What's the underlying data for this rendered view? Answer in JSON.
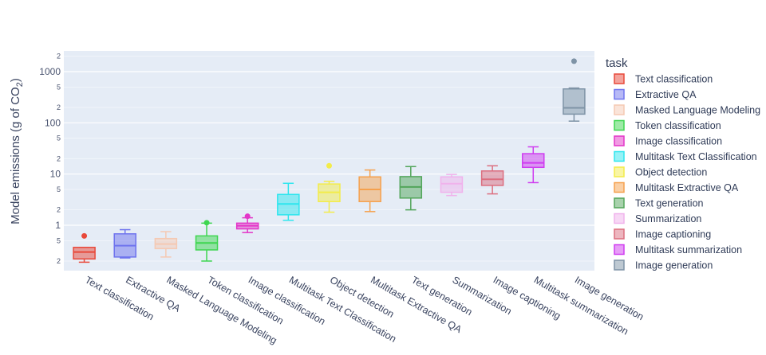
{
  "chart_data": {
    "type": "box",
    "title": "",
    "xlabel": "",
    "ylabel": "Model emissions (g of CO",
    "ylabel_sub": "2",
    "ylabel_close": ")",
    "yscale": "log",
    "ylim": [
      0.15,
      2500
    ],
    "y_major_ticks": [
      {
        "v": 1,
        "label": "1"
      },
      {
        "v": 10,
        "label": "10"
      },
      {
        "v": 100,
        "label": "100"
      },
      {
        "v": 1000,
        "label": "1000"
      }
    ],
    "y_minor_ticks": [
      {
        "v": 0.2,
        "label": "2"
      },
      {
        "v": 0.5,
        "label": "5"
      },
      {
        "v": 2,
        "label": "2"
      },
      {
        "v": 5,
        "label": "5"
      },
      {
        "v": 20,
        "label": "2"
      },
      {
        "v": 50,
        "label": "5"
      },
      {
        "v": 200,
        "label": "2"
      },
      {
        "v": 500,
        "label": "5"
      },
      {
        "v": 2000,
        "label": "2"
      }
    ],
    "legend_title": "task",
    "legend_position": "right",
    "series": [
      {
        "name": "Text classification",
        "color": "#e8483a",
        "whisker_low": 0.19,
        "q1": 0.22,
        "median": 0.3,
        "q3": 0.37,
        "whisker_high": 0.37,
        "outliers": [
          0.62
        ]
      },
      {
        "name": "Extractive QA",
        "color": "#6f74ee",
        "whisker_low": 0.23,
        "q1": 0.24,
        "median": 0.4,
        "q3": 0.68,
        "whisker_high": 0.82,
        "outliers": []
      },
      {
        "name": "Masked Language Modeling",
        "color": "#f5c9b3",
        "whisker_low": 0.24,
        "q1": 0.35,
        "median": 0.43,
        "q3": 0.55,
        "whisker_high": 0.75,
        "outliers": []
      },
      {
        "name": "Token classification",
        "color": "#3ed650",
        "whisker_low": 0.2,
        "q1": 0.33,
        "median": 0.45,
        "q3": 0.62,
        "whisker_high": 1.1,
        "outliers": [
          1.12
        ]
      },
      {
        "name": "Image classification",
        "color": "#e335c8",
        "whisker_low": 0.72,
        "q1": 0.85,
        "median": 0.98,
        "q3": 1.1,
        "whisker_high": 1.4,
        "outliers": [
          1.5
        ]
      },
      {
        "name": "Multitask Text Classification",
        "color": "#2ee6ee",
        "whisker_low": 1.25,
        "q1": 1.6,
        "median": 2.6,
        "q3": 4.0,
        "whisker_high": 6.6,
        "outliers": []
      },
      {
        "name": "Object detection",
        "color": "#f3ec4a",
        "whisker_low": 1.8,
        "q1": 2.9,
        "median": 4.4,
        "q3": 6.4,
        "whisker_high": 7.2,
        "outliers": [
          14.5
        ]
      },
      {
        "name": "Multitask Extractive QA",
        "color": "#f5a14e",
        "whisker_low": 1.85,
        "q1": 2.9,
        "median": 5.0,
        "q3": 8.8,
        "whisker_high": 12.0,
        "outliers": []
      },
      {
        "name": "Text generation",
        "color": "#52a55a",
        "whisker_low": 2.0,
        "q1": 3.4,
        "median": 5.6,
        "q3": 8.9,
        "whisker_high": 14.0,
        "outliers": []
      },
      {
        "name": "Summarization",
        "color": "#f0b2ec",
        "whisker_low": 3.8,
        "q1": 4.4,
        "median": 6.5,
        "q3": 8.8,
        "whisker_high": 9.8,
        "outliers": []
      },
      {
        "name": "Image captioning",
        "color": "#dc6e7f",
        "whisker_low": 4.1,
        "q1": 6.0,
        "median": 7.9,
        "q3": 11.5,
        "whisker_high": 14.5,
        "outliers": []
      },
      {
        "name": "Multitask summarization",
        "color": "#cf3cf0",
        "whisker_low": 6.8,
        "q1": 13.5,
        "median": 16.5,
        "q3": 25.0,
        "whisker_high": 34.0,
        "outliers": []
      },
      {
        "name": "Image generation",
        "color": "#7e93a6",
        "whisker_low": 108,
        "q1": 148,
        "median": 196,
        "q3": 460,
        "whisker_high": 480,
        "outliers": [
          1600
        ]
      }
    ]
  }
}
